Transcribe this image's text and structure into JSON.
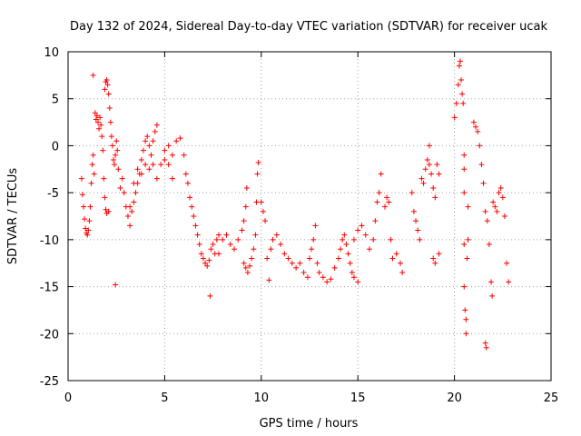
{
  "chart_data": {
    "type": "scatter",
    "title": "Day 132 of 2024, Sidereal Day-to-day VTEC variation (SDTVAR) for receiver ucak",
    "xlabel": "GPS time / hours",
    "ylabel": "SDTVAR / TECUs",
    "xlim": [
      0,
      25
    ],
    "ylim": [
      -25,
      10
    ],
    "x_ticks": [
      0,
      5,
      10,
      15,
      20,
      25
    ],
    "y_ticks": [
      -25,
      -20,
      -15,
      -10,
      -5,
      0,
      5,
      10
    ],
    "grid": true,
    "marker": "+",
    "marker_color": "#ff0000",
    "series": [
      {
        "name": "SDTVAR",
        "points": [
          [
            0.7,
            -3.5
          ],
          [
            0.75,
            -5.2
          ],
          [
            0.8,
            -6.5
          ],
          [
            0.85,
            -7.8
          ],
          [
            0.9,
            -8.8
          ],
          [
            0.95,
            -9.3
          ],
          [
            1.0,
            -9.5
          ],
          [
            1.05,
            -9.0
          ],
          [
            1.1,
            -8.0
          ],
          [
            1.15,
            -6.5
          ],
          [
            1.2,
            -4.0
          ],
          [
            1.25,
            -2.0
          ],
          [
            1.3,
            -1.0
          ],
          [
            1.35,
            -3.0
          ],
          [
            1.3,
            7.5
          ],
          [
            1.4,
            3.5
          ],
          [
            1.45,
            2.8
          ],
          [
            1.5,
            3.2
          ],
          [
            1.55,
            2.5
          ],
          [
            1.6,
            1.8
          ],
          [
            1.65,
            3.0
          ],
          [
            1.7,
            2.2
          ],
          [
            1.75,
            1.0
          ],
          [
            1.8,
            -0.5
          ],
          [
            1.85,
            -3.5
          ],
          [
            1.9,
            -5.5
          ],
          [
            1.95,
            -6.8
          ],
          [
            2.0,
            -7.2
          ],
          [
            2.1,
            -7.0
          ],
          [
            1.9,
            6.0
          ],
          [
            1.95,
            6.8
          ],
          [
            2.0,
            7.0
          ],
          [
            2.05,
            6.5
          ],
          [
            2.1,
            5.5
          ],
          [
            2.15,
            4.0
          ],
          [
            2.2,
            2.5
          ],
          [
            2.25,
            1.0
          ],
          [
            2.3,
            0.0
          ],
          [
            2.35,
            -1.5
          ],
          [
            2.4,
            -2.0
          ],
          [
            2.45,
            -1.0
          ],
          [
            2.5,
            0.5
          ],
          [
            2.55,
            -0.5
          ],
          [
            2.6,
            -2.5
          ],
          [
            2.45,
            -14.8
          ],
          [
            2.7,
            -4.5
          ],
          [
            2.8,
            -3.5
          ],
          [
            2.9,
            -5.0
          ],
          [
            3.0,
            -6.5
          ],
          [
            3.1,
            -7.5
          ],
          [
            3.2,
            -8.5
          ],
          [
            3.3,
            -7.0
          ],
          [
            3.4,
            -6.0
          ],
          [
            3.5,
            -5.0
          ],
          [
            3.6,
            -4.0
          ],
          [
            3.7,
            -3.0
          ],
          [
            3.8,
            -1.5
          ],
          [
            3.9,
            -0.5
          ],
          [
            4.0,
            0.5
          ],
          [
            4.1,
            1.0
          ],
          [
            4.2,
            0.0
          ],
          [
            4.3,
            -1.0
          ],
          [
            4.4,
            0.5
          ],
          [
            4.5,
            1.5
          ],
          [
            4.6,
            2.2
          ],
          [
            3.2,
            -6.5
          ],
          [
            3.4,
            -4.0
          ],
          [
            3.6,
            -2.5
          ],
          [
            3.8,
            -3.0
          ],
          [
            4.0,
            -2.0
          ],
          [
            4.2,
            -2.5
          ],
          [
            4.4,
            -2.0
          ],
          [
            4.6,
            -3.5
          ],
          [
            4.8,
            -2.0
          ],
          [
            5.0,
            -1.5
          ],
          [
            5.2,
            -2.0
          ],
          [
            5.4,
            -3.5
          ],
          [
            5.0,
            -0.5
          ],
          [
            5.2,
            0.0
          ],
          [
            5.4,
            -1.0
          ],
          [
            5.6,
            0.5
          ],
          [
            5.8,
            0.8
          ],
          [
            6.0,
            -1.0
          ],
          [
            6.1,
            -3.0
          ],
          [
            6.2,
            -4.0
          ],
          [
            6.3,
            -5.5
          ],
          [
            6.4,
            -6.5
          ],
          [
            6.5,
            -7.5
          ],
          [
            6.6,
            -8.5
          ],
          [
            6.7,
            -9.5
          ],
          [
            6.8,
            -10.5
          ],
          [
            6.9,
            -11.5
          ],
          [
            7.0,
            -12.0
          ],
          [
            7.1,
            -12.5
          ],
          [
            7.2,
            -12.8
          ],
          [
            7.3,
            -12.2
          ],
          [
            7.4,
            -11.0
          ],
          [
            7.5,
            -10.5
          ],
          [
            7.6,
            -11.5
          ],
          [
            7.7,
            -10.0
          ],
          [
            7.8,
            -9.5
          ],
          [
            7.35,
            -16.0
          ],
          [
            7.8,
            -11.5
          ],
          [
            8.0,
            -10.0
          ],
          [
            8.2,
            -9.5
          ],
          [
            8.4,
            -10.5
          ],
          [
            8.6,
            -11.0
          ],
          [
            8.8,
            -10.0
          ],
          [
            9.0,
            -9.0
          ],
          [
            9.1,
            -8.0
          ],
          [
            9.2,
            -6.5
          ],
          [
            9.25,
            -4.5
          ],
          [
            9.1,
            -12.5
          ],
          [
            9.2,
            -13.0
          ],
          [
            9.3,
            -13.5
          ],
          [
            9.4,
            -12.8
          ],
          [
            9.5,
            -12.0
          ],
          [
            9.6,
            -11.0
          ],
          [
            9.7,
            -9.5
          ],
          [
            9.75,
            -6.0
          ],
          [
            9.8,
            -3.0
          ],
          [
            9.85,
            -1.8
          ],
          [
            10.0,
            -6.0
          ],
          [
            10.1,
            -7.0
          ],
          [
            10.2,
            -8.0
          ],
          [
            10.3,
            -12.0
          ],
          [
            10.4,
            -14.3
          ],
          [
            10.5,
            -11.0
          ],
          [
            10.6,
            -10.0
          ],
          [
            10.8,
            -9.5
          ],
          [
            11.0,
            -10.5
          ],
          [
            11.2,
            -11.5
          ],
          [
            11.4,
            -12.0
          ],
          [
            11.6,
            -12.5
          ],
          [
            11.8,
            -13.0
          ],
          [
            12.0,
            -12.5
          ],
          [
            12.2,
            -13.5
          ],
          [
            12.4,
            -14.0
          ],
          [
            12.5,
            -12.0
          ],
          [
            12.6,
            -11.0
          ],
          [
            12.7,
            -10.0
          ],
          [
            12.8,
            -8.5
          ],
          [
            12.9,
            -12.5
          ],
          [
            13.0,
            -13.5
          ],
          [
            13.2,
            -14.0
          ],
          [
            13.4,
            -14.5
          ],
          [
            13.6,
            -14.2
          ],
          [
            13.8,
            -13.0
          ],
          [
            14.0,
            -12.0
          ],
          [
            14.1,
            -11.0
          ],
          [
            14.2,
            -10.0
          ],
          [
            14.3,
            -9.5
          ],
          [
            14.4,
            -10.5
          ],
          [
            14.5,
            -11.5
          ],
          [
            14.6,
            -12.5
          ],
          [
            14.7,
            -13.5
          ],
          [
            14.8,
            -14.0
          ],
          [
            15.0,
            -14.5
          ],
          [
            14.8,
            -10.0
          ],
          [
            15.0,
            -9.0
          ],
          [
            15.2,
            -8.5
          ],
          [
            15.4,
            -9.5
          ],
          [
            15.6,
            -11.0
          ],
          [
            15.8,
            -10.0
          ],
          [
            15.9,
            -8.0
          ],
          [
            16.0,
            -6.0
          ],
          [
            16.1,
            -5.0
          ],
          [
            16.2,
            -3.0
          ],
          [
            16.4,
            -6.5
          ],
          [
            16.5,
            -5.5
          ],
          [
            16.6,
            -6.0
          ],
          [
            16.7,
            -10.0
          ],
          [
            16.8,
            -12.0
          ],
          [
            17.0,
            -11.5
          ],
          [
            17.2,
            -12.5
          ],
          [
            17.3,
            -13.5
          ],
          [
            17.8,
            -5.0
          ],
          [
            17.9,
            -7.0
          ],
          [
            18.0,
            -8.0
          ],
          [
            18.1,
            -9.0
          ],
          [
            18.2,
            -10.0
          ],
          [
            18.3,
            -3.5
          ],
          [
            18.4,
            -4.0
          ],
          [
            18.5,
            -2.5
          ],
          [
            18.6,
            -1.5
          ],
          [
            18.7,
            -2.0
          ],
          [
            18.8,
            -3.0
          ],
          [
            18.9,
            -4.5
          ],
          [
            19.0,
            -5.5
          ],
          [
            19.1,
            -2.0
          ],
          [
            19.2,
            -3.0
          ],
          [
            18.7,
            0.0
          ],
          [
            18.9,
            -12.0
          ],
          [
            19.0,
            -12.5
          ],
          [
            19.2,
            -11.5
          ],
          [
            20.0,
            3.0
          ],
          [
            20.1,
            4.5
          ],
          [
            20.2,
            6.5
          ],
          [
            20.25,
            8.5
          ],
          [
            20.3,
            9.0
          ],
          [
            20.35,
            7.0
          ],
          [
            20.4,
            5.5
          ],
          [
            20.45,
            4.5
          ],
          [
            20.5,
            -1.0
          ],
          [
            20.5,
            -2.5
          ],
          [
            20.5,
            -5.0
          ],
          [
            20.5,
            -10.5
          ],
          [
            20.5,
            -15.0
          ],
          [
            20.55,
            -17.5
          ],
          [
            20.6,
            -18.5
          ],
          [
            20.6,
            -20.0
          ],
          [
            20.65,
            -12.0
          ],
          [
            20.7,
            -10.0
          ],
          [
            20.7,
            -6.5
          ],
          [
            21.0,
            2.5
          ],
          [
            21.1,
            2.0
          ],
          [
            21.2,
            1.5
          ],
          [
            21.3,
            0.0
          ],
          [
            21.4,
            -2.0
          ],
          [
            21.5,
            -4.0
          ],
          [
            21.6,
            -7.0
          ],
          [
            21.7,
            -8.0
          ],
          [
            21.8,
            -10.5
          ],
          [
            21.9,
            -14.5
          ],
          [
            21.95,
            -16.0
          ],
          [
            21.6,
            -21.0
          ],
          [
            21.65,
            -21.5
          ],
          [
            22.0,
            -6.0
          ],
          [
            22.1,
            -6.5
          ],
          [
            22.2,
            -7.0
          ],
          [
            22.3,
            -5.0
          ],
          [
            22.4,
            -4.5
          ],
          [
            22.5,
            -5.5
          ],
          [
            22.6,
            -7.5
          ],
          [
            22.7,
            -12.5
          ],
          [
            22.8,
            -14.5
          ]
        ]
      }
    ]
  }
}
